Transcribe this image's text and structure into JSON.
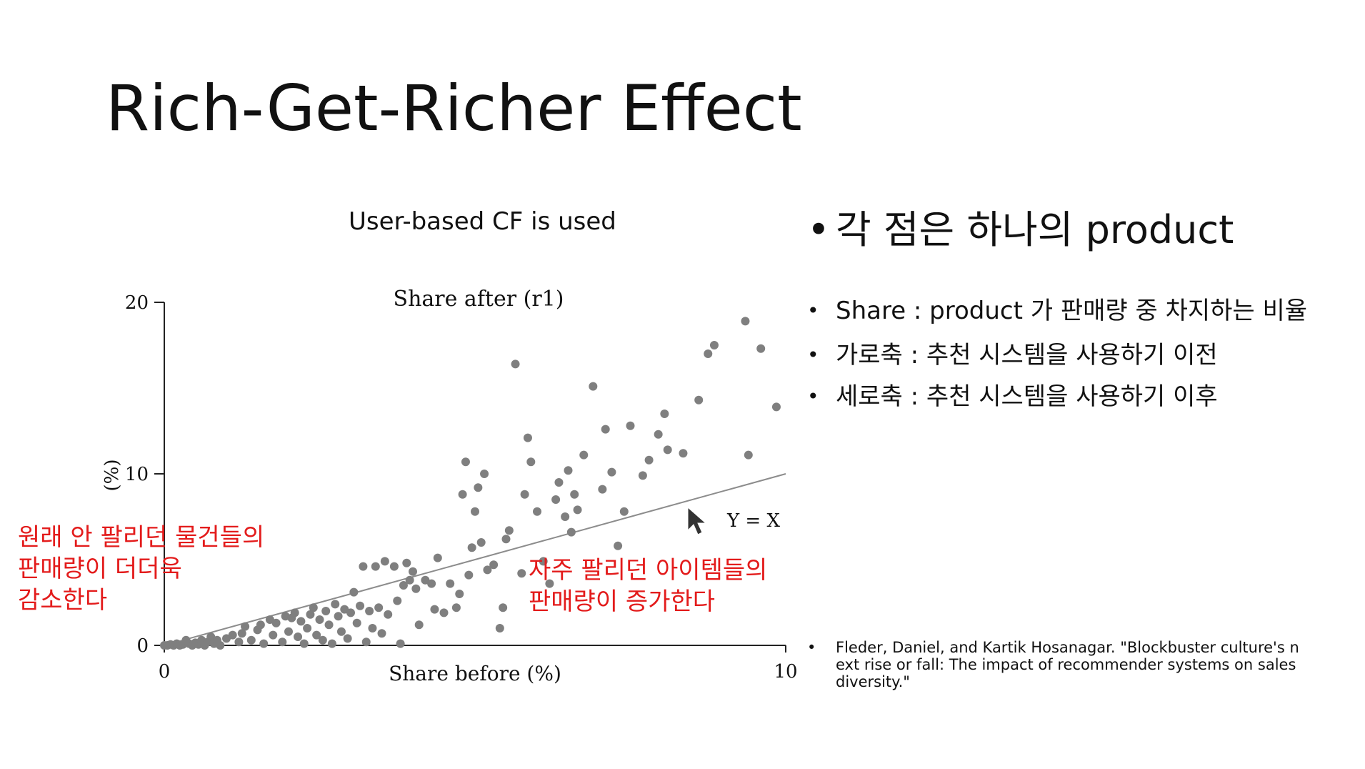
{
  "slide": {
    "title": "Rich-Get-Richer Effect",
    "subtitle": "User-based CF is used"
  },
  "bullets": {
    "main": "각 점은 하나의  product",
    "share": "Share : product 가 판매량 중 차지하는 비율",
    "x_axis": "가로축 : 추천 시스템을 사용하기 이전",
    "y_axis": "세로축 : 추천 시스템을 사용하기 이후"
  },
  "reference": "Fleder, Daniel, and Kartik Hosanagar. \"Blockbuster culture's next rise or fall: The impact of recommender systems on sales diversity.\"",
  "annotations": {
    "left": "원래 안 팔리던 물건들의\n판매량이 더더욱\n감소한다",
    "right": "자주 팔리던 아이템들의\n판매량이 증가한다"
  },
  "colors": {
    "annotation": "#e31b1b",
    "points": "#7f7f7f",
    "line": "#8c8c8c"
  },
  "chart_data": {
    "type": "scatter",
    "title": "Share after (r1)",
    "xlabel": "Share before (%)",
    "ylabel": "(%)",
    "xlim": [
      0,
      10
    ],
    "ylim": [
      0,
      20
    ],
    "x_ticks": [
      "0",
      "10"
    ],
    "y_ticks": [
      "0",
      "10",
      "20"
    ],
    "reference_line": {
      "label": "Y = X",
      "from": [
        0,
        0
      ],
      "to": [
        10,
        10
      ]
    },
    "points": [
      [
        0,
        0
      ],
      [
        0.05,
        0
      ],
      [
        0.1,
        0.05
      ],
      [
        0.15,
        0
      ],
      [
        0.2,
        0.1
      ],
      [
        0.25,
        0
      ],
      [
        0.3,
        0.05
      ],
      [
        0.35,
        0.3
      ],
      [
        0.4,
        0.1
      ],
      [
        0.45,
        0
      ],
      [
        0.5,
        0.15
      ],
      [
        0.55,
        0.05
      ],
      [
        0.6,
        0.3
      ],
      [
        0.65,
        0
      ],
      [
        0.7,
        0.2
      ],
      [
        0.75,
        0.5
      ],
      [
        0.8,
        0.1
      ],
      [
        0.85,
        0.3
      ],
      [
        0.9,
        0
      ],
      [
        1.0,
        0.4
      ],
      [
        1.1,
        0.6
      ],
      [
        1.2,
        0.2
      ],
      [
        1.25,
        0.7
      ],
      [
        1.3,
        1.1
      ],
      [
        1.4,
        0.3
      ],
      [
        1.5,
        0.9
      ],
      [
        1.55,
        1.2
      ],
      [
        1.6,
        0.1
      ],
      [
        1.7,
        1.5
      ],
      [
        1.75,
        0.6
      ],
      [
        1.8,
        1.3
      ],
      [
        1.9,
        0.2
      ],
      [
        1.95,
        1.7
      ],
      [
        2.0,
        0.8
      ],
      [
        2.05,
        1.6
      ],
      [
        2.1,
        1.9
      ],
      [
        2.15,
        0.5
      ],
      [
        2.2,
        1.4
      ],
      [
        2.25,
        0.1
      ],
      [
        2.3,
        1.0
      ],
      [
        2.35,
        1.8
      ],
      [
        2.4,
        2.2
      ],
      [
        2.45,
        0.6
      ],
      [
        2.5,
        1.5
      ],
      [
        2.55,
        0.3
      ],
      [
        2.6,
        2.0
      ],
      [
        2.65,
        1.2
      ],
      [
        2.7,
        0.1
      ],
      [
        2.75,
        2.4
      ],
      [
        2.8,
        1.7
      ],
      [
        2.85,
        0.8
      ],
      [
        2.9,
        2.1
      ],
      [
        2.95,
        0.4
      ],
      [
        3.0,
        1.9
      ],
      [
        3.05,
        3.1
      ],
      [
        3.1,
        1.3
      ],
      [
        3.15,
        2.3
      ],
      [
        3.2,
        4.6
      ],
      [
        3.25,
        0.2
      ],
      [
        3.3,
        2.0
      ],
      [
        3.35,
        1.0
      ],
      [
        3.4,
        4.6
      ],
      [
        3.45,
        2.2
      ],
      [
        3.5,
        0.7
      ],
      [
        3.55,
        4.9
      ],
      [
        3.6,
        1.8
      ],
      [
        3.7,
        4.6
      ],
      [
        3.75,
        2.6
      ],
      [
        3.8,
        0.1
      ],
      [
        3.85,
        3.5
      ],
      [
        3.9,
        4.8
      ],
      [
        3.95,
        3.8
      ],
      [
        4.0,
        4.3
      ],
      [
        4.05,
        3.3
      ],
      [
        4.1,
        1.2
      ],
      [
        4.2,
        3.8
      ],
      [
        4.3,
        3.6
      ],
      [
        4.35,
        2.1
      ],
      [
        4.4,
        5.1
      ],
      [
        4.5,
        1.9
      ],
      [
        4.6,
        3.6
      ],
      [
        4.7,
        2.2
      ],
      [
        4.75,
        3.0
      ],
      [
        4.8,
        8.8
      ],
      [
        4.85,
        10.7
      ],
      [
        4.9,
        4.1
      ],
      [
        4.95,
        5.7
      ],
      [
        5.0,
        7.8
      ],
      [
        5.05,
        9.2
      ],
      [
        5.1,
        6.0
      ],
      [
        5.15,
        10.0
      ],
      [
        5.2,
        4.4
      ],
      [
        5.3,
        4.7
      ],
      [
        5.4,
        1.0
      ],
      [
        5.45,
        2.2
      ],
      [
        5.5,
        6.2
      ],
      [
        5.55,
        6.7
      ],
      [
        5.65,
        16.4
      ],
      [
        5.75,
        4.2
      ],
      [
        5.8,
        8.8
      ],
      [
        5.85,
        12.1
      ],
      [
        5.9,
        10.7
      ],
      [
        6.0,
        7.8
      ],
      [
        6.1,
        4.9
      ],
      [
        6.2,
        3.6
      ],
      [
        6.3,
        8.5
      ],
      [
        6.35,
        9.5
      ],
      [
        6.45,
        7.5
      ],
      [
        6.5,
        10.2
      ],
      [
        6.55,
        6.6
      ],
      [
        6.6,
        8.8
      ],
      [
        6.65,
        7.9
      ],
      [
        6.75,
        11.1
      ],
      [
        6.9,
        15.1
      ],
      [
        7.05,
        9.1
      ],
      [
        7.1,
        12.6
      ],
      [
        7.2,
        10.1
      ],
      [
        7.3,
        5.8
      ],
      [
        7.4,
        7.8
      ],
      [
        7.5,
        12.8
      ],
      [
        7.7,
        9.9
      ],
      [
        7.8,
        10.8
      ],
      [
        7.95,
        12.3
      ],
      [
        8.05,
        13.5
      ],
      [
        8.1,
        11.4
      ],
      [
        8.35,
        11.2
      ],
      [
        8.6,
        14.3
      ],
      [
        8.75,
        17.0
      ],
      [
        8.85,
        17.5
      ],
      [
        9.35,
        18.9
      ],
      [
        9.4,
        11.1
      ],
      [
        9.6,
        17.3
      ],
      [
        9.85,
        13.9
      ]
    ]
  }
}
